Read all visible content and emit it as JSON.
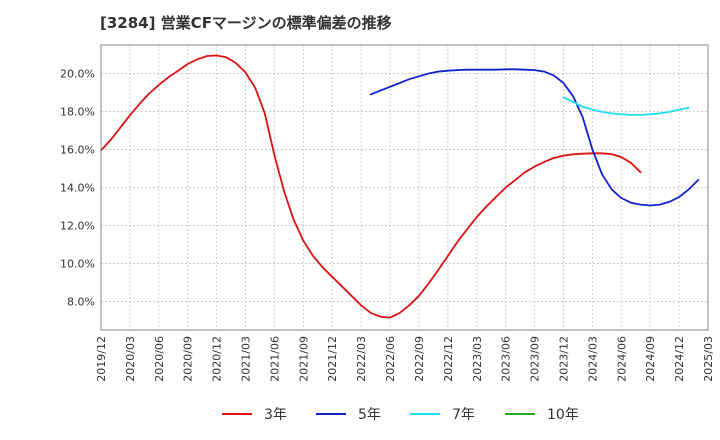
{
  "chart_data": {
    "type": "line",
    "title": "[3284]  営業CFマージンの標準偏差の推移",
    "xlabel": "",
    "ylabel": "",
    "ylim": [
      6.5,
      21.5
    ],
    "yticks": [
      8.0,
      10.0,
      12.0,
      14.0,
      16.0,
      18.0,
      20.0
    ],
    "ytick_labels": [
      "8.0%",
      "10.0%",
      "12.0%",
      "14.0%",
      "16.0%",
      "18.0%",
      "20.0%"
    ],
    "xticks": [
      "2019/12",
      "2020/03",
      "2020/06",
      "2020/09",
      "2020/12",
      "2021/03",
      "2021/06",
      "2021/09",
      "2021/12",
      "2022/03",
      "2022/06",
      "2022/09",
      "2022/12",
      "2023/03",
      "2023/06",
      "2023/09",
      "2023/12",
      "2024/03",
      "2024/06",
      "2024/09",
      "2024/12",
      "2025/03"
    ],
    "grid": true,
    "legend_position": "bottom",
    "series": [
      {
        "name": "3年",
        "color": "#dd1111",
        "points": [
          [
            0,
            15.95
          ],
          [
            1,
            16.5
          ],
          [
            2,
            17.15
          ],
          [
            3,
            17.8
          ],
          [
            4,
            18.4
          ],
          [
            5,
            18.95
          ],
          [
            6,
            19.4
          ],
          [
            7,
            19.8
          ],
          [
            8,
            20.15
          ],
          [
            9,
            20.5
          ],
          [
            10,
            20.75
          ],
          [
            11,
            20.92
          ],
          [
            12,
            20.95
          ],
          [
            13,
            20.85
          ],
          [
            14,
            20.55
          ],
          [
            15,
            20.05
          ],
          [
            16,
            19.25
          ],
          [
            17,
            17.9
          ],
          [
            18,
            15.7
          ],
          [
            19,
            13.8
          ],
          [
            20,
            12.3
          ],
          [
            21,
            11.2
          ],
          [
            22,
            10.4
          ],
          [
            23,
            9.8
          ],
          [
            24,
            9.3
          ],
          [
            25,
            8.8
          ],
          [
            26,
            8.3
          ],
          [
            27,
            7.8
          ],
          [
            28,
            7.4
          ],
          [
            29,
            7.2
          ],
          [
            30,
            7.15
          ],
          [
            31,
            7.4
          ],
          [
            32,
            7.8
          ],
          [
            33,
            8.3
          ],
          [
            34,
            8.95
          ],
          [
            35,
            9.65
          ],
          [
            36,
            10.4
          ],
          [
            37,
            11.15
          ],
          [
            38,
            11.8
          ],
          [
            39,
            12.45
          ],
          [
            40,
            13.0
          ],
          [
            41,
            13.5
          ],
          [
            42,
            14.0
          ],
          [
            43,
            14.4
          ],
          [
            44,
            14.8
          ],
          [
            45,
            15.1
          ],
          [
            46,
            15.35
          ],
          [
            47,
            15.55
          ],
          [
            48,
            15.68
          ],
          [
            49,
            15.75
          ],
          [
            50,
            15.78
          ],
          [
            51,
            15.8
          ],
          [
            52,
            15.8
          ],
          [
            53,
            15.76
          ],
          [
            54,
            15.6
          ],
          [
            55,
            15.3
          ],
          [
            56,
            14.8
          ]
        ]
      },
      {
        "name": "5年",
        "color": "#1122cc",
        "points": [
          [
            28,
            18.9
          ],
          [
            29,
            19.1
          ],
          [
            30,
            19.3
          ],
          [
            31,
            19.5
          ],
          [
            32,
            19.7
          ],
          [
            33,
            19.85
          ],
          [
            34,
            20.0
          ],
          [
            35,
            20.1
          ],
          [
            36,
            20.15
          ],
          [
            37,
            20.18
          ],
          [
            38,
            20.2
          ],
          [
            39,
            20.2
          ],
          [
            40,
            20.2
          ],
          [
            41,
            20.2
          ],
          [
            42,
            20.22
          ],
          [
            43,
            20.22
          ],
          [
            44,
            20.2
          ],
          [
            45,
            20.18
          ],
          [
            46,
            20.1
          ],
          [
            47,
            19.9
          ],
          [
            48,
            19.5
          ],
          [
            49,
            18.8
          ],
          [
            50,
            17.7
          ],
          [
            51,
            16.0
          ],
          [
            52,
            14.7
          ],
          [
            53,
            13.9
          ],
          [
            54,
            13.45
          ],
          [
            55,
            13.2
          ],
          [
            56,
            13.1
          ],
          [
            57,
            13.05
          ],
          [
            58,
            13.1
          ],
          [
            59,
            13.25
          ],
          [
            60,
            13.5
          ],
          [
            61,
            13.9
          ],
          [
            62,
            14.4
          ]
        ]
      },
      {
        "name": "7年",
        "color": "#22ddee",
        "points": [
          [
            48,
            18.75
          ],
          [
            49,
            18.5
          ],
          [
            50,
            18.25
          ],
          [
            51,
            18.1
          ],
          [
            52,
            17.98
          ],
          [
            53,
            17.9
          ],
          [
            54,
            17.85
          ],
          [
            55,
            17.82
          ],
          [
            56,
            17.82
          ],
          [
            57,
            17.85
          ],
          [
            58,
            17.9
          ],
          [
            59,
            17.98
          ],
          [
            60,
            18.1
          ],
          [
            61,
            18.2
          ]
        ]
      },
      {
        "name": "10年",
        "color": "#22aa22",
        "points": []
      }
    ]
  }
}
